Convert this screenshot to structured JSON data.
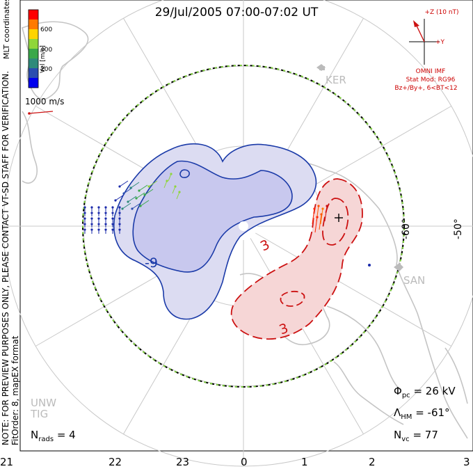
{
  "title": "29/Jul/2005 07:00-07:02 UT",
  "notes": {
    "preview": "NOTE: FOR PREVIEW PURPOSES ONLY, PLEASE CONTACT VT-SD STAFF FOR VERIFICATION.",
    "fit": "FitOrder: 8, mapEX format"
  },
  "colorbar": {
    "title": "Vel [m/s]",
    "ticks": [
      "600",
      "400",
      "200"
    ],
    "colors": [
      "#ff0000",
      "#ff7a00",
      "#ffd400",
      "#8fd63a",
      "#3aa84a",
      "#2f8a7a",
      "#2a4db0",
      "#0000ee"
    ]
  },
  "coord_label": "MLT coordinates",
  "scale_vector": "1000 m/s",
  "imf": {
    "z_label": "+Z (10 nT)",
    "y_label": "+Y",
    "source": "OMNI IMF",
    "model": "Stat Mod: RG96",
    "condition": "Bz+/By+, 6<BT<12"
  },
  "stations": [
    "KER",
    "SAN",
    "UNW",
    "TIG"
  ],
  "latitude_labels": [
    "-60°",
    "-50°"
  ],
  "contour_labels": {
    "negative": "-9",
    "positive_1": "3",
    "positive_2": "3"
  },
  "stats": {
    "phi_symbol": "Φ",
    "phi_sub": "pc",
    "phi_value": "= 26 kV",
    "lambda_symbol": "Λ",
    "lambda_sub": "HM",
    "lambda_value": "= -61°",
    "nvc_symbol": "N",
    "nvc_sub": "vc",
    "nvc_value": "= 77",
    "nrads_symbol": "N",
    "nrads_sub": "rads",
    "nrads_value": "= 4"
  },
  "mlt_axis": [
    "21",
    "22",
    "23",
    "0",
    "1",
    "2",
    "3"
  ],
  "colors": {
    "negative_cell": "#1a3aa8",
    "negative_fill": "#dcdcf2",
    "positive_cell": "#cc1111",
    "positive_fill": "#f6d6d6",
    "grid": "#c8c8c8",
    "hmb": "#7fd43a"
  }
}
